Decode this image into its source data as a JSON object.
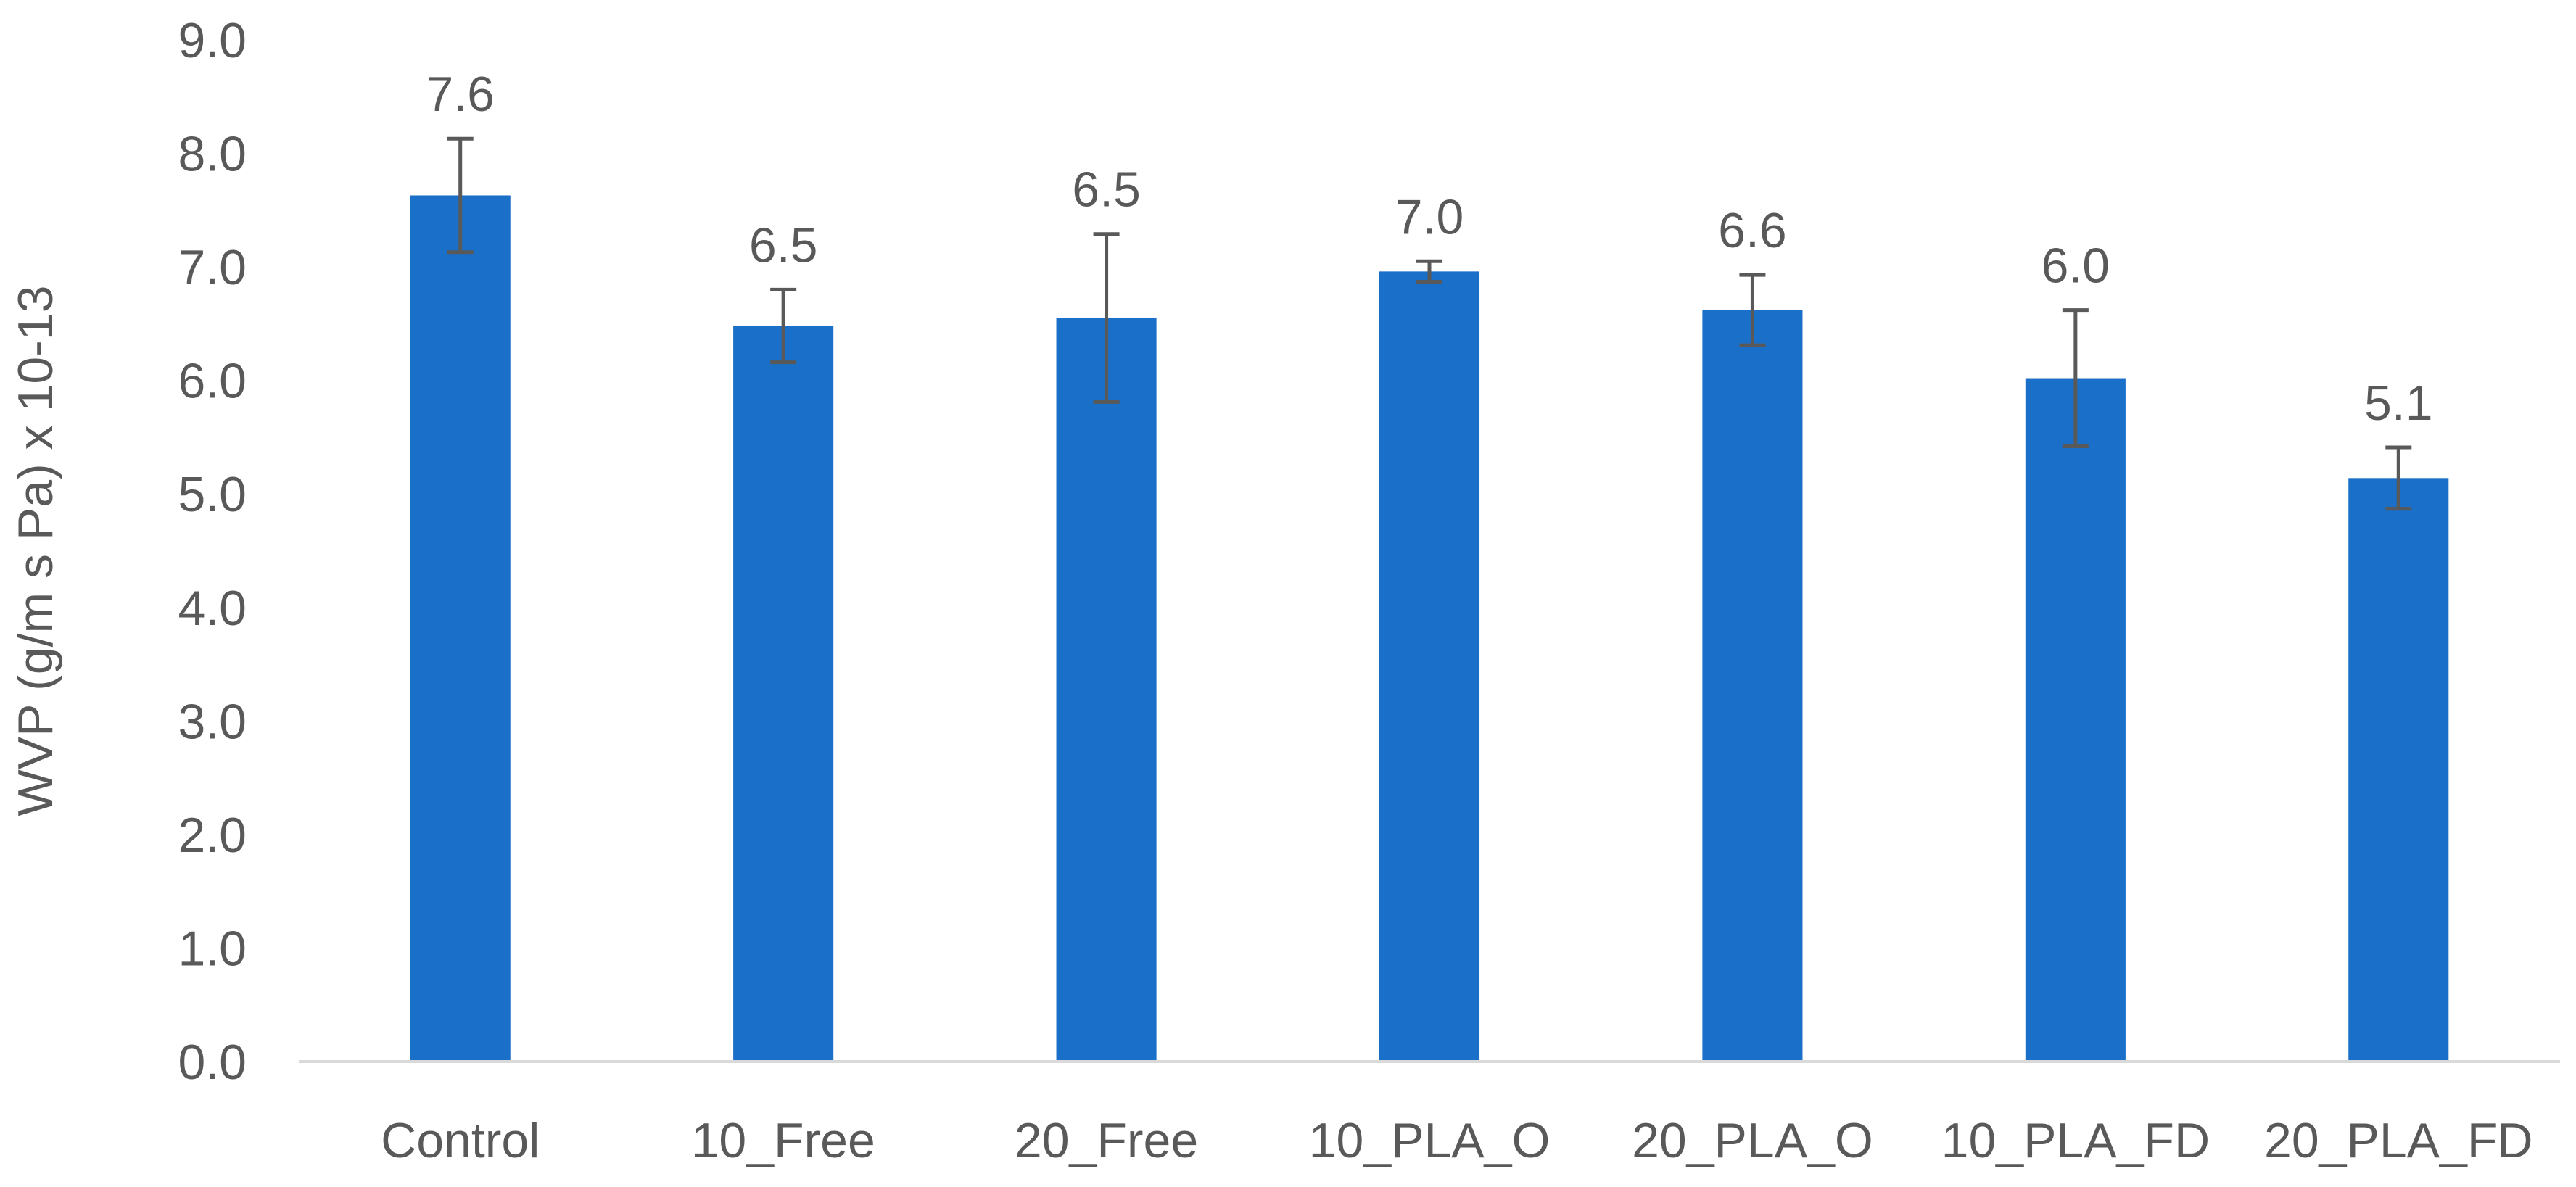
{
  "chart_data": {
    "type": "bar",
    "title": "",
    "xlabel": "",
    "ylabel": "WVP (g/m s Pa) x 10-13",
    "ylim": [
      0,
      9
    ],
    "y_ticks": [
      "0.0",
      "1.0",
      "2.0",
      "3.0",
      "4.0",
      "5.0",
      "6.0",
      "7.0",
      "8.0",
      "9.0"
    ],
    "grid": false,
    "legend": "none",
    "bar_color": "#1a70c8",
    "error_bar_color": "#595959",
    "categories": [
      "Control",
      "10_Free",
      "20_Free",
      "10_PLA_O",
      "20_PLA_O",
      "10_PLA_FD",
      "20_PLA_FD"
    ],
    "values": [
      7.63,
      6.48,
      6.55,
      6.96,
      6.62,
      6.02,
      5.14
    ],
    "data_labels": [
      "7.6",
      "6.5",
      "6.5",
      "7.0",
      "6.6",
      "6.0",
      "5.1"
    ],
    "errors": [
      0.5,
      0.32,
      0.74,
      0.09,
      0.31,
      0.6,
      0.27
    ]
  }
}
